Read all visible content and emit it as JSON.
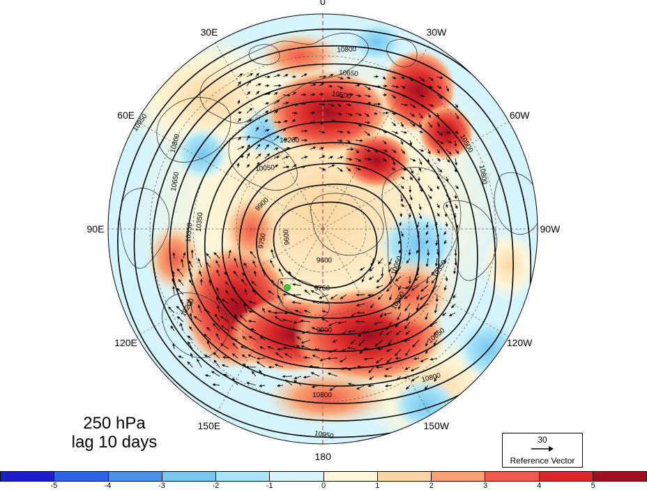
{
  "panel": {
    "title_line1": "250 hPa",
    "title_line2": "lag 10 days"
  },
  "longitude_labels": [
    {
      "text": "0",
      "angle": 0
    },
    {
      "text": "30W",
      "angle": 30
    },
    {
      "text": "60W",
      "angle": 60
    },
    {
      "text": "90W",
      "angle": 90
    },
    {
      "text": "120W",
      "angle": 120
    },
    {
      "text": "150W",
      "angle": 150
    },
    {
      "text": "180",
      "angle": 180
    },
    {
      "text": "150E",
      "angle": 210
    },
    {
      "text": "120E",
      "angle": 240
    },
    {
      "text": "90E",
      "angle": 270
    },
    {
      "text": "60E",
      "angle": 300
    },
    {
      "text": "30E",
      "angle": 330
    }
  ],
  "contour_labels": [
    "10800",
    "10650",
    "10500",
    "10950",
    "10800",
    "10650",
    "10350",
    "10200",
    "10050",
    "9900",
    "9750",
    "9600",
    "10800",
    "10500",
    "10050",
    "10200",
    "9900",
    "9750",
    "10350",
    "10650",
    "10800",
    "10950",
    "9600",
    "10800",
    "10350",
    "10200"
  ],
  "reference_vector": {
    "magnitude": "30",
    "label": "Reference Vector"
  },
  "colorbar": {
    "colors": [
      "#1e1ec8",
      "#2e64e6",
      "#4a90e8",
      "#78c6f0",
      "#a8e4f8",
      "#d6f4fc",
      "#fdf6d8",
      "#fcd6a0",
      "#f8a070",
      "#f05a48",
      "#d82828",
      "#a01020"
    ],
    "ticks": [
      "-5",
      "-4",
      "-3",
      "-2",
      "-1",
      "0",
      "1",
      "2",
      "3",
      "4",
      "5"
    ]
  },
  "colors": {
    "land_outline": "#333333",
    "contour": "#000000",
    "marker": "#33cc33"
  }
}
